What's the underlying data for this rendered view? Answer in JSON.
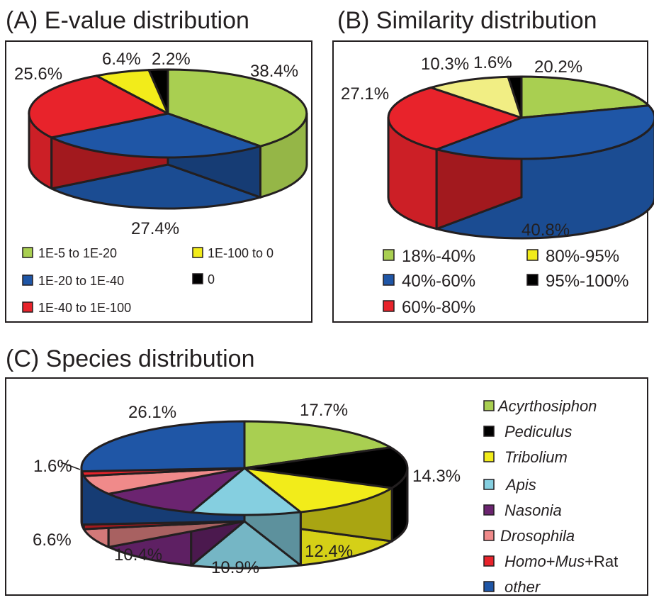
{
  "chart_data": [
    {
      "type": "pie",
      "title": "(A) E-value distribution",
      "slices": [
        {
          "label": "1E-5 to 1E-20",
          "value": 38.4,
          "value_label": "38.4%",
          "color": "#a9cf51"
        },
        {
          "label": "1E-20 to 1E-40",
          "value": 27.4,
          "value_label": "27.4%",
          "color": "#1f56a6"
        },
        {
          "label": "1E-40 to 1E-100",
          "value": 25.6,
          "value_label": "25.6%",
          "color": "#e8232b"
        },
        {
          "label": "1E-100 to 0",
          "value": 6.4,
          "value_label": "6.4%",
          "color": "#f2ec1a"
        },
        {
          "label": "0",
          "value": 2.2,
          "value_label": "2.2%",
          "color": "#000000"
        }
      ],
      "legend_position": "bottom"
    },
    {
      "type": "pie",
      "title": "(B) Similarity distribution",
      "slices": [
        {
          "label": "18%-40%",
          "value": 20.2,
          "value_label": "20.2%",
          "color": "#a9cf51"
        },
        {
          "label": "40%-60%",
          "value": 40.8,
          "value_label": "40.8%",
          "color": "#1f56a6"
        },
        {
          "label": "60%-80%",
          "value": 27.1,
          "value_label": "27.1%",
          "color": "#e8232b"
        },
        {
          "label": "80%-95%",
          "value": 10.3,
          "value_label": "10.3%",
          "color": "#f1ee84"
        },
        {
          "label": "95%-100%",
          "value": 1.6,
          "value_label": "1.6%",
          "color": "#000000"
        }
      ],
      "legend_position": "bottom"
    },
    {
      "type": "pie",
      "title": "(C) Species distribution",
      "slices": [
        {
          "label": "Acyrthosiphon",
          "value": 17.7,
          "value_label": "17.7%",
          "color": "#a9cf51"
        },
        {
          "label": "Pediculus",
          "value": 14.3,
          "value_label": "14.3%",
          "color": "#000000"
        },
        {
          "label": "Tribolium",
          "value": 12.4,
          "value_label": "12.4%",
          "color": "#f2ec1a"
        },
        {
          "label": "Apis",
          "value": 10.9,
          "value_label": "10.9%",
          "color": "#85cfe0"
        },
        {
          "label": "Nasonia",
          "value": 10.4,
          "value_label": "10.4%",
          "color": "#6b2470"
        },
        {
          "label": "Drosophila",
          "value": 6.6,
          "value_label": "6.6%",
          "color": "#f08a8a"
        },
        {
          "label": "Homo+Mus+Rat",
          "value": 1.6,
          "value_label": "1.6%",
          "color": "#e8232b"
        },
        {
          "label": "other",
          "value": 26.1,
          "value_label": "26.1%",
          "color": "#1f56a6"
        }
      ],
      "legend_position": "right"
    }
  ],
  "legend_c": {
    "homo": "Homo",
    "plus1": "+",
    "mus": "Mus",
    "plus_rat": "+Rat"
  }
}
